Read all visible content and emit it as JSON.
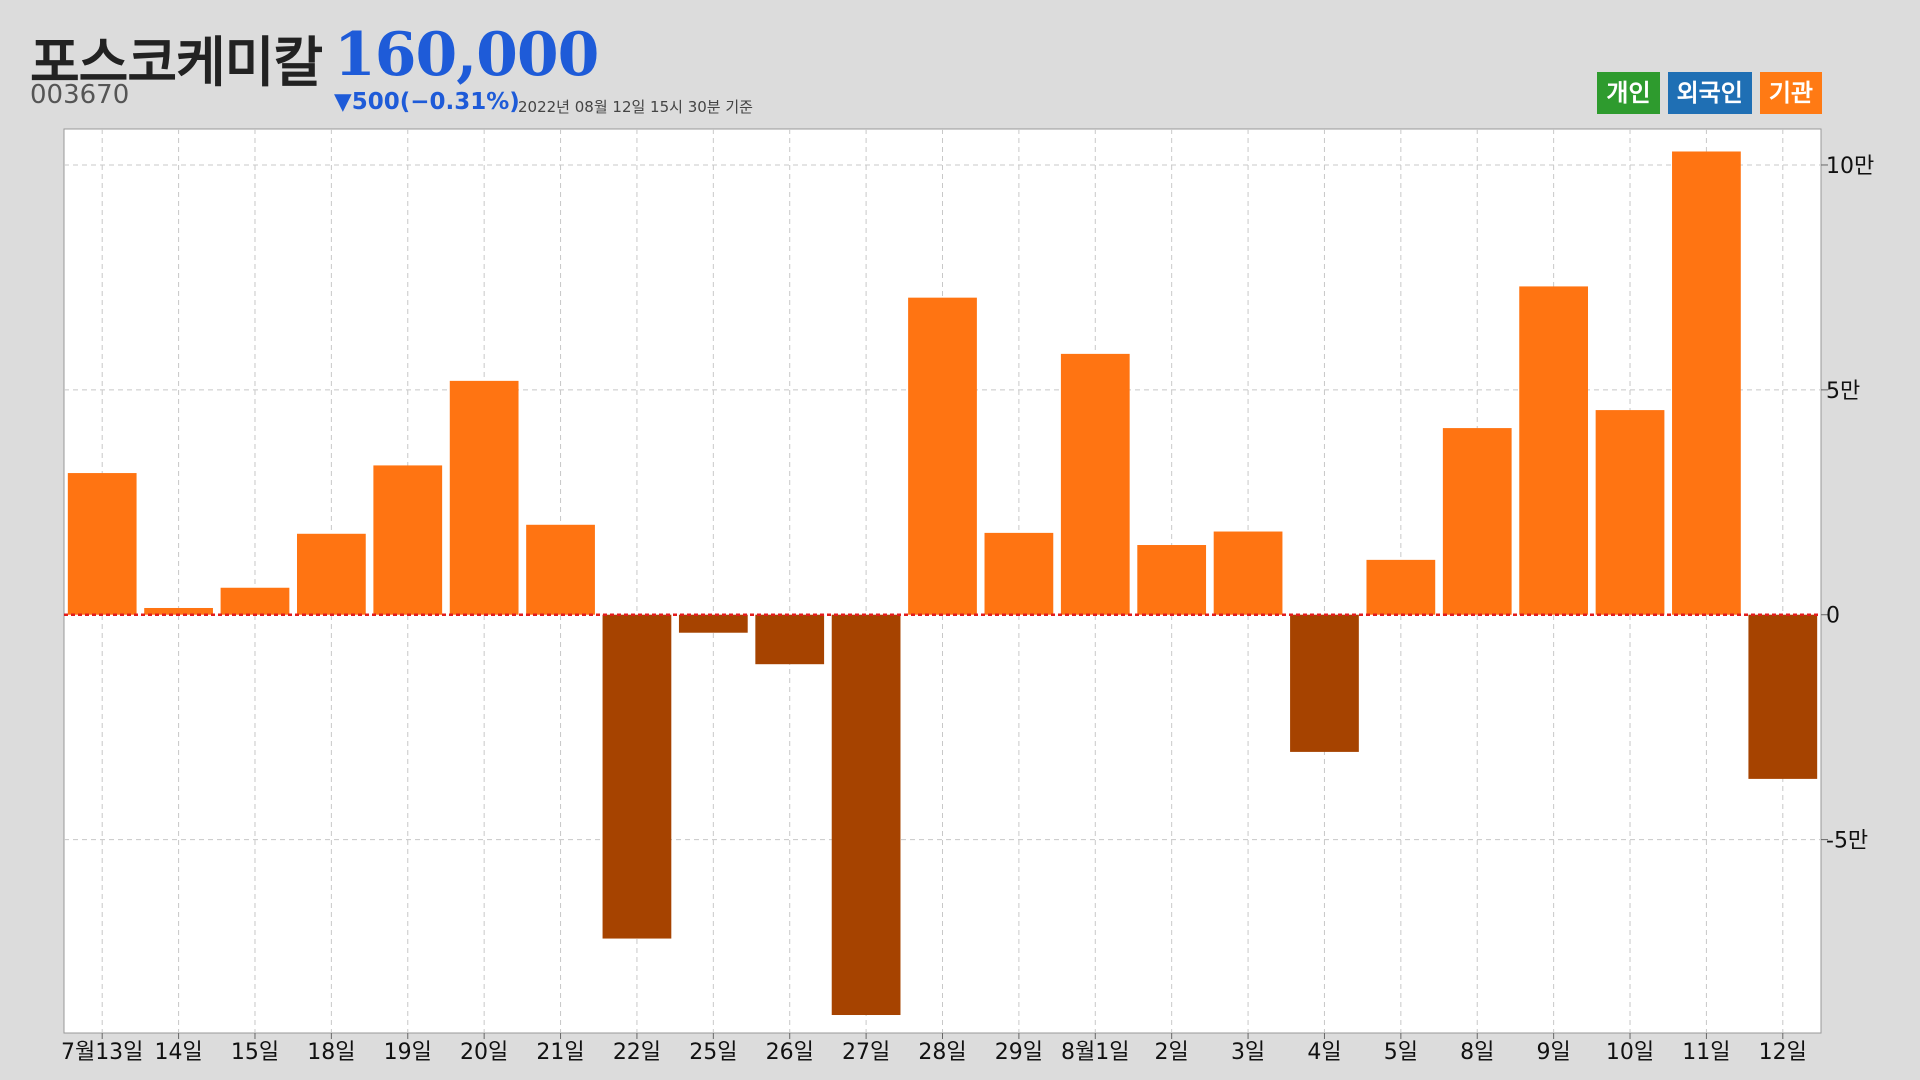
{
  "header": {
    "stock_name": "포스코케미칼",
    "price": "160,000",
    "code": "003670",
    "change": "▼500(−0.31%)",
    "timestamp": "2022년 08월 12일 15시 30분 기준"
  },
  "legend": [
    {
      "label": "개인",
      "color": "#2e9b2e"
    },
    {
      "label": "외국인",
      "color": "#1f6fb4"
    },
    {
      "label": "기관",
      "color": "#ff7a14"
    }
  ],
  "chart_data": {
    "type": "bar",
    "title": "",
    "xlabel": "",
    "ylabel": "",
    "series_name": "기관",
    "categories": [
      "7월13일",
      "14일",
      "15일",
      "18일",
      "19일",
      "20일",
      "21일",
      "22일",
      "25일",
      "26일",
      "27일",
      "28일",
      "29일",
      "8월1일",
      "2일",
      "3일",
      "4일",
      "5일",
      "8일",
      "9일",
      "10일",
      "11일",
      "12일"
    ],
    "values": [
      31500,
      1500,
      6000,
      18000,
      33200,
      52000,
      20000,
      -72000,
      -4000,
      -11000,
      -89000,
      70500,
      18200,
      58000,
      15500,
      18500,
      -30500,
      12200,
      41500,
      73000,
      45500,
      103000,
      -36500
    ],
    "ylim": [
      -93000,
      108000
    ],
    "y_ticks": [
      100000,
      50000,
      0,
      -50000
    ],
    "y_tick_labels": [
      "10만",
      "5만",
      "0",
      "-5만"
    ],
    "grid": true,
    "axis_position": "right",
    "positive_color": "#ff7412",
    "negative_color": "#a64300",
    "zero_line_color": "#e31c1c"
  }
}
